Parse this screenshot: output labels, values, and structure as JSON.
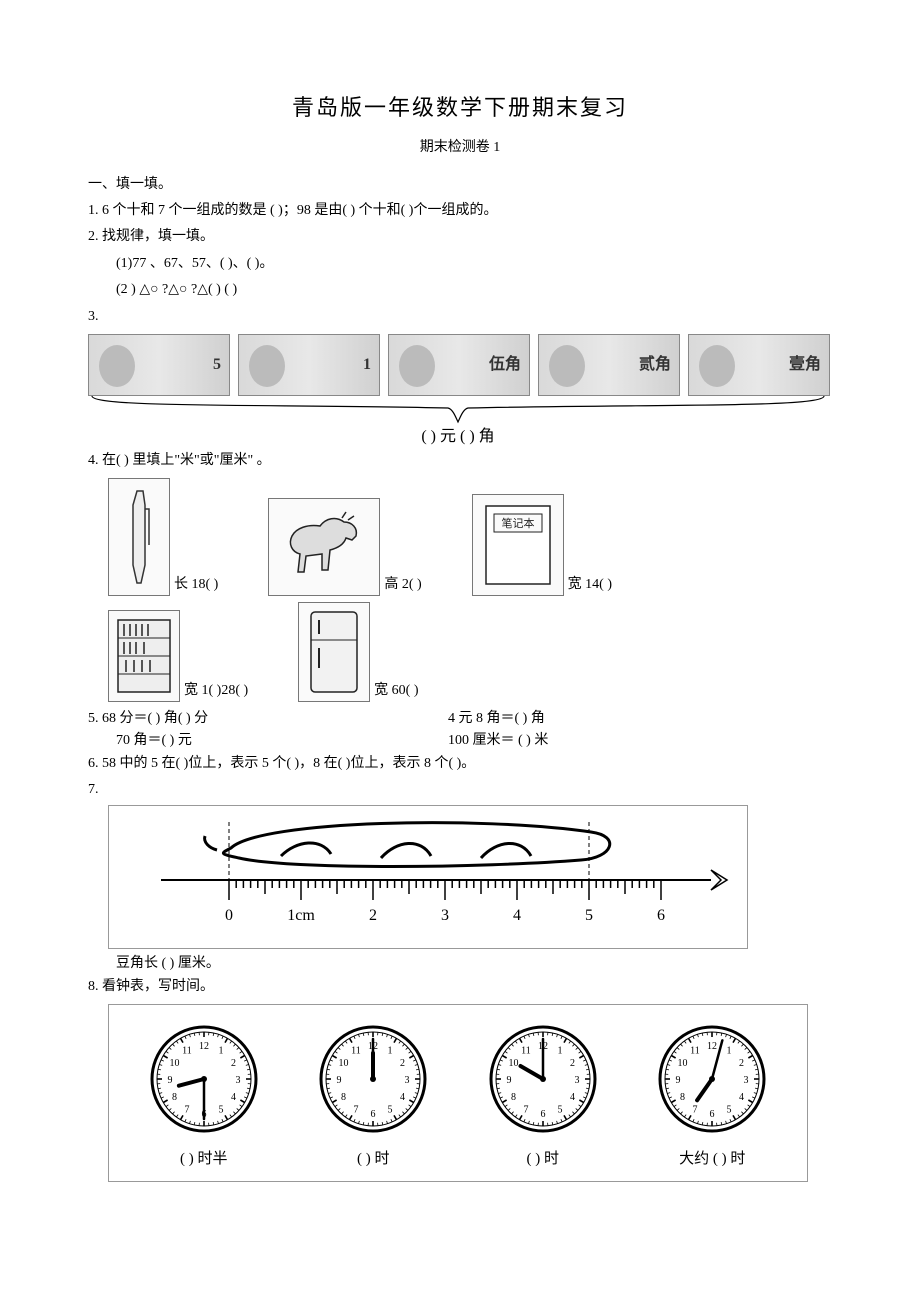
{
  "title": "青岛版一年级数学下册期末复习",
  "subtitle": "期末检测卷  1",
  "section1": "一、填一填。",
  "q1": "1. 6 个十和 7 个一组成的数是  (      )；98 是由(      ) 个十和(      )个一组成的。",
  "q2": "2. 找规律，填一填。",
  "q2a": "(1)77 、67、57、(        )、(        )。",
  "q2b": "(2 ) △○ ?△○ ?△(        ) (        )",
  "q3": "3.",
  "money": {
    "bills": [
      "5",
      "1",
      "伍角",
      "贰角",
      "壹角"
    ],
    "answer_yuan": "(         ) 元 (         ) 角"
  },
  "q4": "4. 在(      ) 里填上\"米\"或\"厘米\"  。",
  "objs": {
    "pen": "长 18(        )",
    "horse": "高 2(        )",
    "notebook_inner": "笔记本",
    "notebook": "宽 14(        )",
    "shelf": "宽 1(        )28(        )",
    "fridge": "宽 60(        )"
  },
  "q5": {
    "l1a": "5. 68 分＝(        ) 角(        ) 分",
    "l1b": "4 元 8 角＝(        ) 角",
    "l2a": "70 角＝(        ) 元",
    "l2b": "100 厘米＝ (        ) 米"
  },
  "q6": "6. 58 中的 5 在(        )位上，表示  5 个(        )，8 在(        )位上，表示  8 个(        )。",
  "q7": "7.",
  "ruler": {
    "label_cm": "1cm",
    "ticks": [
      "0",
      "1cm",
      "2",
      "3",
      "4",
      "5",
      "6"
    ],
    "answer": "豆角长 (        ) 厘米。"
  },
  "q8": "8. 看钟表，写时间。",
  "clocks": [
    {
      "hour_angle": 255,
      "min_angle": 180,
      "label": "(      ) 时半"
    },
    {
      "hour_angle": 0,
      "min_angle": 0,
      "label": "(      ) 时"
    },
    {
      "hour_angle": 300,
      "min_angle": 0,
      "label": "(      ) 时"
    },
    {
      "hour_angle": 215,
      "min_angle": 15,
      "label": "大约 (      ) 时"
    }
  ]
}
